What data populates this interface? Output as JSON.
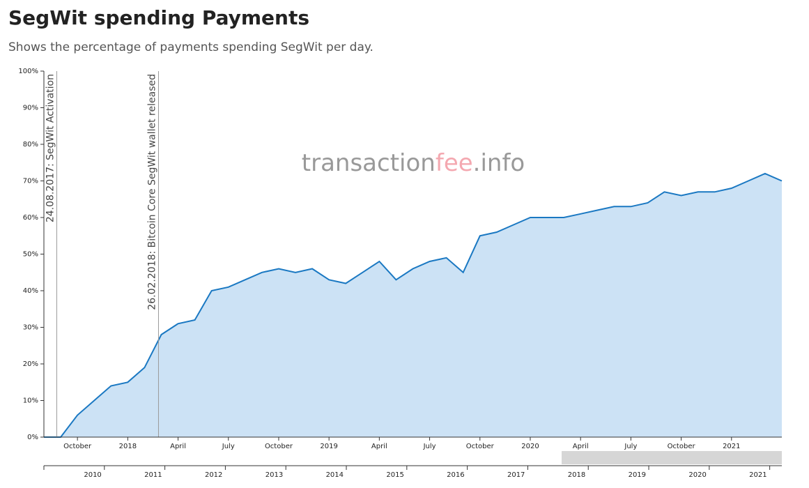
{
  "chart_data": {
    "type": "area",
    "title": "SegWit spending Payments",
    "subtitle": "Shows the percentage of payments spending SegWit per day.",
    "watermark": [
      "transaction",
      "fee",
      ".info"
    ],
    "color": "#1a78c2",
    "fill": "#cce2f5",
    "x": [
      "2017-08",
      "2017-09",
      "2017-10",
      "2017-11",
      "2017-12",
      "2018-01",
      "2018-02",
      "2018-03",
      "2018-04",
      "2018-05",
      "2018-06",
      "2018-07",
      "2018-08",
      "2018-09",
      "2018-10",
      "2018-11",
      "2018-12",
      "2019-01",
      "2019-02",
      "2019-03",
      "2019-04",
      "2019-05",
      "2019-06",
      "2019-07",
      "2019-08",
      "2019-09",
      "2019-10",
      "2019-11",
      "2019-12",
      "2020-01",
      "2020-02",
      "2020-03",
      "2020-04",
      "2020-05",
      "2020-06",
      "2020-07",
      "2020-08",
      "2020-09",
      "2020-10",
      "2020-11",
      "2020-12",
      "2021-01",
      "2021-02",
      "2021-03",
      "2021-04"
    ],
    "values": [
      0,
      0,
      6,
      10,
      14,
      15,
      19,
      28,
      31,
      32,
      40,
      41,
      43,
      45,
      46,
      45,
      46,
      43,
      42,
      45,
      48,
      43,
      46,
      48,
      49,
      45,
      55,
      56,
      58,
      60,
      60,
      60,
      61,
      62,
      63,
      63,
      64,
      67,
      66,
      67,
      67,
      68,
      70,
      72,
      70
    ],
    "xlim": [
      "2017-08",
      "2021-04"
    ],
    "xticks": [
      {
        "value": "2017-10",
        "label": "October"
      },
      {
        "value": "2018-01",
        "label": "2018"
      },
      {
        "value": "2018-04",
        "label": "April"
      },
      {
        "value": "2018-07",
        "label": "July"
      },
      {
        "value": "2018-10",
        "label": "October"
      },
      {
        "value": "2019-01",
        "label": "2019"
      },
      {
        "value": "2019-04",
        "label": "April"
      },
      {
        "value": "2019-07",
        "label": "July"
      },
      {
        "value": "2019-10",
        "label": "October"
      },
      {
        "value": "2020-01",
        "label": "2020"
      },
      {
        "value": "2020-04",
        "label": "April"
      },
      {
        "value": "2020-07",
        "label": "July"
      },
      {
        "value": "2020-10",
        "label": "October"
      },
      {
        "value": "2021-01",
        "label": "2021"
      }
    ],
    "ylim": [
      0,
      100
    ],
    "yticks": [
      {
        "value": 0,
        "label": "0%"
      },
      {
        "value": 10,
        "label": "10%"
      },
      {
        "value": 20,
        "label": "20%"
      },
      {
        "value": 30,
        "label": "30%"
      },
      {
        "value": 40,
        "label": "40%"
      },
      {
        "value": 50,
        "label": "50%"
      },
      {
        "value": 60,
        "label": "60%"
      },
      {
        "value": 70,
        "label": "70%"
      },
      {
        "value": 80,
        "label": "80%"
      },
      {
        "value": 90,
        "label": "90%"
      },
      {
        "value": 100,
        "label": "100%"
      }
    ],
    "annotations": [
      {
        "x": "2017-08-24",
        "text": "24.08.2017: SegWit Activation"
      },
      {
        "x": "2018-02-26",
        "text": "26.02.2018: Bitcoin Core SegWit wallet released"
      }
    ],
    "navigator": {
      "xlim": [
        2009,
        2021.2
      ],
      "xticks": [
        2010,
        2011,
        2012,
        2013,
        2014,
        2015,
        2016,
        2017,
        2018,
        2019,
        2020,
        2021
      ],
      "brush": [
        2017.56,
        2021.2
      ]
    }
  }
}
